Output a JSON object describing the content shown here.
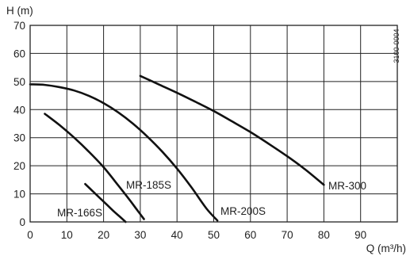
{
  "chart_data": {
    "type": "line",
    "ylabel": "H (m)",
    "xlabel": "Q (m³/h)",
    "xlim": [
      0,
      100
    ],
    "ylim": [
      0,
      70
    ],
    "x_ticks": [
      0,
      10,
      20,
      30,
      40,
      50,
      60,
      70,
      80,
      90
    ],
    "y_ticks": [
      0,
      10,
      20,
      30,
      40,
      50,
      60,
      70
    ],
    "grid": true,
    "figure_code": "3100-0004",
    "series": [
      {
        "name": "MR-166S",
        "x": [
          15,
          17,
          19,
          21,
          23,
          24.5,
          26
        ],
        "y": [
          13.5,
          11,
          8.5,
          6,
          3.5,
          1.8,
          0
        ]
      },
      {
        "name": "MR-185S",
        "x": [
          4,
          8,
          12,
          16,
          20,
          24,
          27,
          29,
          31
        ],
        "y": [
          38.5,
          34.5,
          30,
          25,
          19.5,
          13,
          8,
          4.5,
          1
        ]
      },
      {
        "name": "MR-200S",
        "x": [
          0,
          4,
          8,
          12,
          16,
          20,
          24,
          28,
          32,
          36,
          40,
          44,
          48,
          51
        ],
        "y": [
          49,
          48.8,
          48,
          46.8,
          44.9,
          42.3,
          39,
          35,
          30.3,
          25,
          19,
          12.2,
          4.8,
          0.5
        ]
      },
      {
        "name": "MR-300",
        "x": [
          30,
          35,
          40,
          45,
          50,
          55,
          60,
          65,
          70,
          75,
          80
        ],
        "y": [
          52,
          49,
          46,
          42.8,
          39.5,
          35.8,
          32,
          27.8,
          23.4,
          18.6,
          13.2
        ]
      }
    ]
  }
}
